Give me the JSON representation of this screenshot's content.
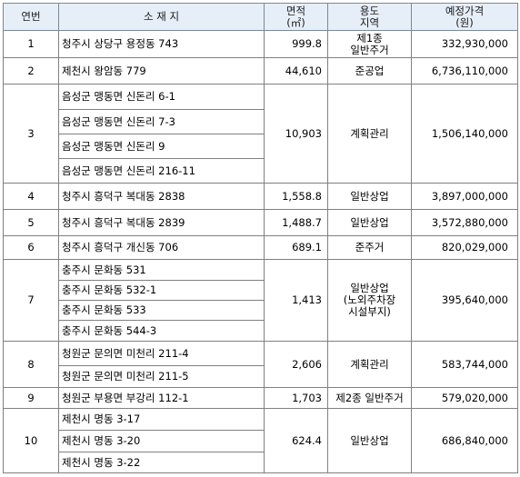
{
  "headers": {
    "no": "연번",
    "location": "소  재  지",
    "area_line1": "면적",
    "area_line2": "(㎡)",
    "use_line1": "용도",
    "use_line2": "지역",
    "price_line1": "예정가격",
    "price_line2": "(원)"
  },
  "rows": [
    {
      "no": "1",
      "addresses": [
        "청주시 상당구 용정동 743"
      ],
      "area": "999.8",
      "use": [
        "제1종",
        "일반주거"
      ],
      "price": "332,930,000"
    },
    {
      "no": "2",
      "addresses": [
        "제천시 왕암동 779"
      ],
      "area": "44,610",
      "use": [
        "준공업"
      ],
      "price": "6,736,110,000"
    },
    {
      "no": "3",
      "addresses": [
        "음성군 맹동면 신돈리 6-1",
        "음성군 맹동면 신돈리 7-3",
        "음성군 맹동면 신돈리 9",
        "음성군 맹동면 신돈리 216-11"
      ],
      "area": "10,903",
      "use": [
        "계획관리"
      ],
      "price": "1,506,140,000"
    },
    {
      "no": "4",
      "addresses": [
        "청주시 흥덕구 복대동 2838"
      ],
      "area": "1,558.8",
      "use": [
        "일반상업"
      ],
      "price": "3,897,000,000"
    },
    {
      "no": "5",
      "addresses": [
        "청주시 흥덕구 복대동 2839"
      ],
      "area": "1,488.7",
      "use": [
        "일반상업"
      ],
      "price": "3,572,880,000"
    },
    {
      "no": "6",
      "addresses": [
        "청주시 흥덕구 개신동 706"
      ],
      "area": "689.1",
      "use": [
        "준주거"
      ],
      "price": "820,029,000"
    },
    {
      "no": "7",
      "addresses": [
        "충주시 문화동 531",
        "충주시 문화동 532-1",
        "충주시 문화동 533",
        "충주시 문화동 544-3"
      ],
      "area": "1,413",
      "use": [
        "일반상업",
        "(노외주차장",
        "시설부지)"
      ],
      "price": "395,640,000"
    },
    {
      "no": "8",
      "addresses": [
        "청원군 문의면 미천리 211-4",
        "청원군 문의면 미천리 211-5"
      ],
      "area": "2,606",
      "use": [
        "계획관리"
      ],
      "price": "583,744,000"
    },
    {
      "no": "9",
      "addresses": [
        "청원군 부용면 부강리 112-1"
      ],
      "area": "1,703",
      "use": [
        "제2종 일반주거"
      ],
      "price": "579,020,000"
    },
    {
      "no": "10",
      "addresses": [
        "제천시 명동 3-17",
        "제천시 명동 3-20",
        "제천시 명동 3-22"
      ],
      "area": "624.4",
      "use": [
        "일반상업"
      ],
      "price": "686,840,000"
    }
  ]
}
